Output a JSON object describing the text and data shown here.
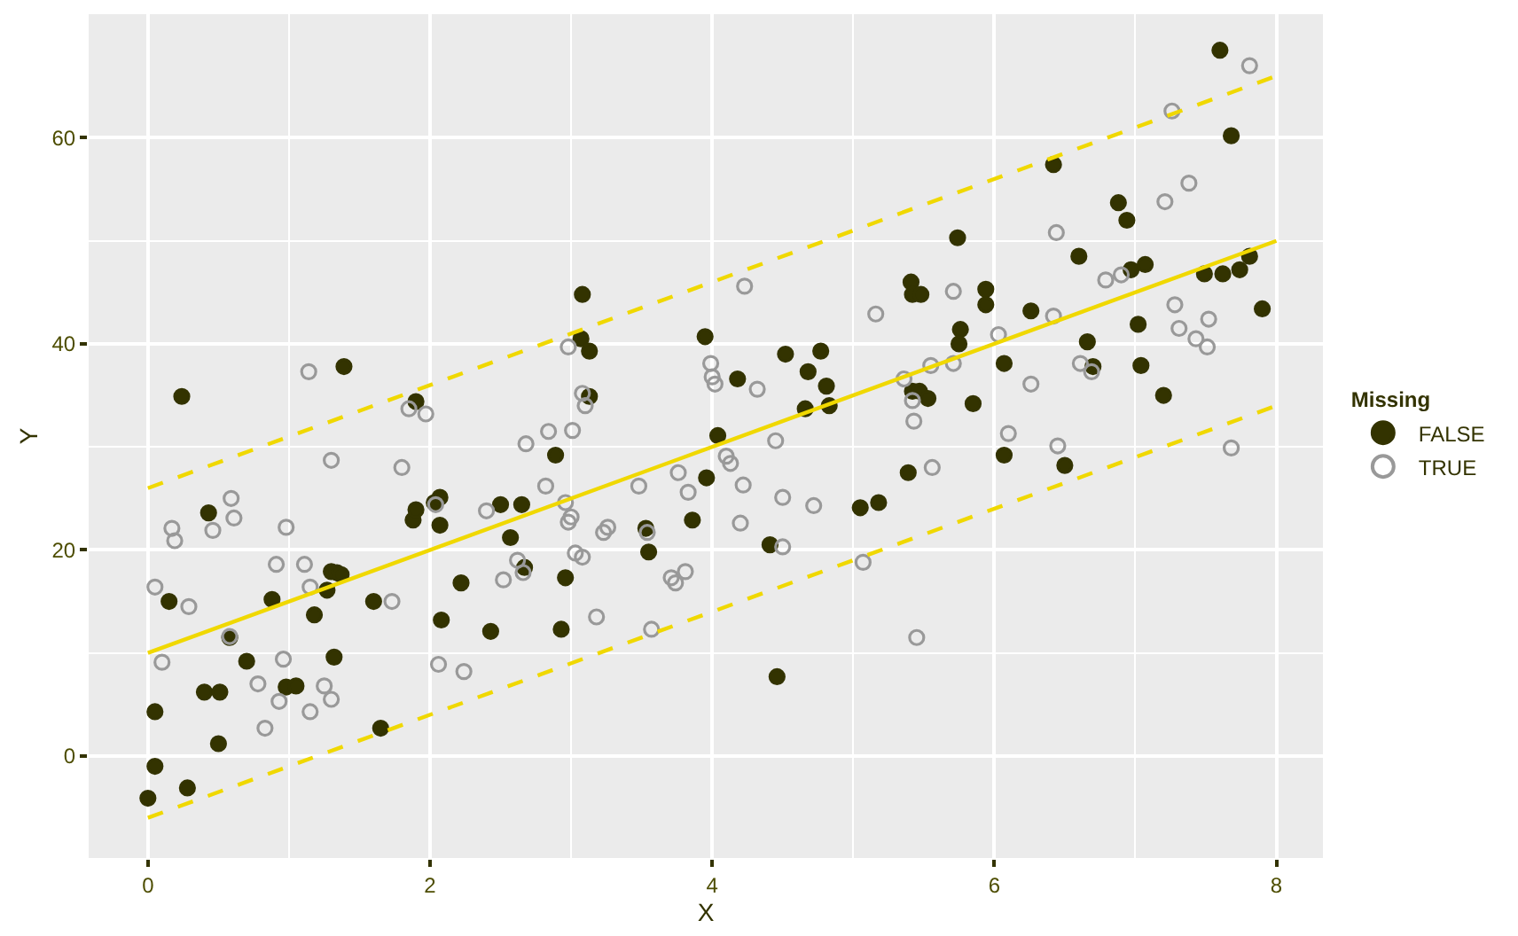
{
  "chart_data": {
    "type": "scatter",
    "xlabel": "X",
    "ylabel": "Y",
    "legend_title": "Missing",
    "legend": "right",
    "grid": true,
    "xlim": [
      -0.42,
      8.33
    ],
    "ylim": [
      -9.9,
      72
    ],
    "xticks": [
      0,
      2,
      4,
      6,
      8
    ],
    "yticks": [
      0,
      20,
      40,
      60
    ],
    "series": [
      {
        "name": "FALSE",
        "color": "#333300",
        "marker": "circle",
        "x": [
          0,
          0.05,
          0.05,
          0.15,
          0.24,
          0.28,
          0.4,
          0.43,
          0.51,
          0.5,
          0.58,
          0.7,
          0.88,
          0.98,
          1.05,
          1.18,
          1.27,
          1.3,
          1.34,
          1.32,
          1.37,
          1.39,
          1.6,
          1.65,
          1.88,
          1.9,
          1.9,
          2.03,
          2.07,
          2.08,
          2.07,
          2.22,
          2.43,
          2.5,
          2.57,
          2.65,
          2.67,
          2.89,
          2.93,
          2.96,
          3.07,
          3.08,
          3.13,
          3.13,
          3.53,
          3.55,
          3.86,
          3.95,
          3.96,
          4.04,
          4.18,
          4.41,
          4.46,
          4.52,
          4.66,
          4.68,
          4.77,
          4.81,
          4.83,
          5.05,
          5.18,
          5.39,
          5.41,
          5.42,
          5.48,
          5.42,
          5.47,
          5.53,
          5.74,
          5.76,
          5.75,
          5.85,
          5.94,
          5.94,
          6.07,
          6.07,
          6.26,
          6.42,
          6.5,
          6.6,
          6.66,
          6.7,
          6.88,
          6.94,
          6.97,
          7.02,
          7.04,
          7.07,
          7.2,
          7.49,
          7.6,
          7.62,
          7.68,
          7.74,
          7.81,
          7.9
        ],
        "values": [
          -4.1,
          -1.0,
          4.3,
          15.0,
          34.9,
          -3.1,
          6.2,
          23.6,
          6.2,
          1.2,
          11.5,
          9.2,
          15.2,
          6.7,
          6.8,
          13.7,
          16.1,
          17.9,
          17.8,
          9.6,
          17.6,
          37.8,
          15.0,
          2.7,
          22.9,
          23.9,
          34.4,
          24.6,
          25.1,
          13.2,
          22.4,
          16.8,
          12.1,
          24.4,
          21.2,
          24.4,
          18.3,
          29.2,
          12.3,
          17.3,
          40.5,
          44.8,
          39.3,
          34.9,
          22.1,
          19.8,
          22.9,
          40.7,
          27.0,
          31.1,
          36.6,
          20.5,
          7.7,
          39.0,
          33.7,
          37.3,
          39.3,
          35.9,
          34.0,
          24.1,
          24.6,
          27.5,
          46.0,
          44.8,
          44.8,
          35.4,
          35.4,
          34.7,
          50.3,
          41.4,
          40.0,
          34.2,
          45.3,
          43.8,
          38.1,
          29.2,
          43.2,
          57.4,
          28.2,
          48.5,
          40.2,
          37.8,
          53.7,
          52.0,
          47.2,
          41.9,
          37.9,
          47.7,
          35.0,
          46.8,
          68.5,
          46.8,
          60.2,
          47.2,
          48.5,
          43.4
        ]
      },
      {
        "name": "TRUE",
        "color": "#999999",
        "marker": "circle",
        "x": [
          0.05,
          0.1,
          0.17,
          0.19,
          0.29,
          0.46,
          0.59,
          0.61,
          0.58,
          0.78,
          0.83,
          0.91,
          0.93,
          0.96,
          0.98,
          1.11,
          1.14,
          1.15,
          1.15,
          1.25,
          1.3,
          1.3,
          1.73,
          1.8,
          1.85,
          1.97,
          2.06,
          2.04,
          2.24,
          2.4,
          2.52,
          2.62,
          2.66,
          2.68,
          2.82,
          2.84,
          2.96,
          2.98,
          2.98,
          3.0,
          3.01,
          3.03,
          3.08,
          3.08,
          3.1,
          3.18,
          3.23,
          3.26,
          3.48,
          3.54,
          3.57,
          3.71,
          3.74,
          3.76,
          3.81,
          3.83,
          3.99,
          4.0,
          4.02,
          4.1,
          4.13,
          4.23,
          4.22,
          4.2,
          4.32,
          4.45,
          4.5,
          4.5,
          4.72,
          5.07,
          5.16,
          5.36,
          5.43,
          5.42,
          5.45,
          5.55,
          5.56,
          5.71,
          5.71,
          6.03,
          6.1,
          6.26,
          6.42,
          6.44,
          6.45,
          6.61,
          6.69,
          6.79,
          6.9,
          7.21,
          7.26,
          7.28,
          7.31,
          7.38,
          7.43,
          7.51,
          7.52,
          7.68,
          7.81
        ],
        "values": [
          16.4,
          9.1,
          22.1,
          20.9,
          14.5,
          21.9,
          25.0,
          23.1,
          11.6,
          7.0,
          2.7,
          18.6,
          5.3,
          9.4,
          22.2,
          18.6,
          37.3,
          4.3,
          16.4,
          6.8,
          5.5,
          28.7,
          15.0,
          28.0,
          33.7,
          33.2,
          8.9,
          24.4,
          8.2,
          23.8,
          17.1,
          19.0,
          17.8,
          30.3,
          26.2,
          31.5,
          24.6,
          22.7,
          39.7,
          23.2,
          31.6,
          19.7,
          19.3,
          35.2,
          34.0,
          13.5,
          21.7,
          22.2,
          26.2,
          21.7,
          12.3,
          17.3,
          16.8,
          27.5,
          17.9,
          25.6,
          38.1,
          36.8,
          36.1,
          29.1,
          28.4,
          45.6,
          26.3,
          22.6,
          35.6,
          30.6,
          25.1,
          20.3,
          24.3,
          18.8,
          42.9,
          36.6,
          32.5,
          34.5,
          11.5,
          37.9,
          28.0,
          45.1,
          38.1,
          40.9,
          31.3,
          36.1,
          42.7,
          50.8,
          30.1,
          38.1,
          37.3,
          46.2,
          46.7,
          53.8,
          62.6,
          43.8,
          41.5,
          55.6,
          40.5,
          39.7,
          42.4,
          29.9,
          67.0
        ]
      },
      {
        "type": "line",
        "color": "#f0d800",
        "line_style": "solid",
        "marker": "none",
        "x": [
          0,
          8
        ],
        "values": [
          10,
          50
        ]
      },
      {
        "type": "line",
        "color": "#f0d800",
        "line_style": "dashed",
        "x": [
          0,
          8
        ],
        "values": [
          26,
          66
        ],
        "marker": "none"
      },
      {
        "type": "line",
        "color": "#f0d800",
        "line_style": "dashed",
        "x": [
          0,
          8
        ],
        "values": [
          -6,
          34
        ],
        "marker": "none"
      }
    ]
  }
}
